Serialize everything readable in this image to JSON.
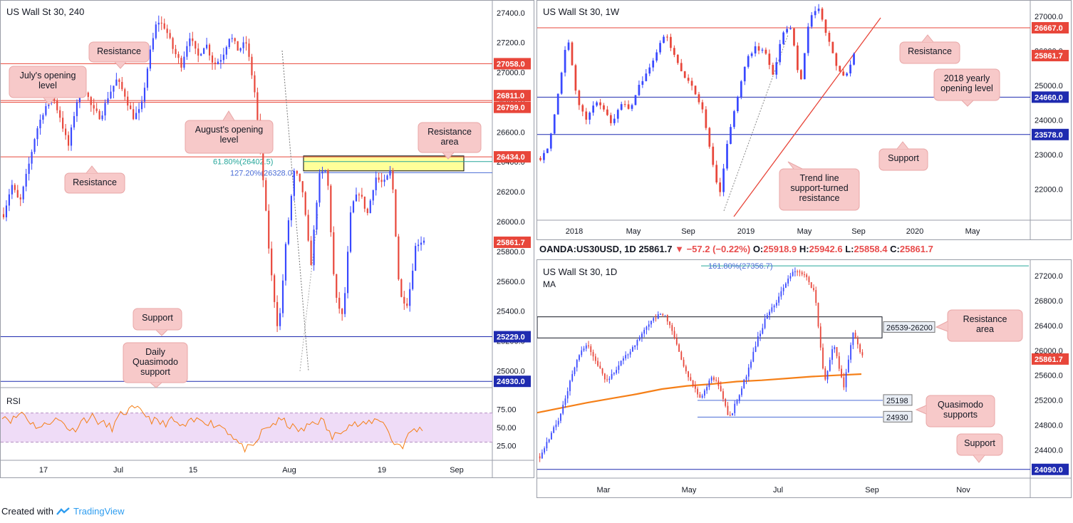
{
  "colors": {
    "up": "#3949ff",
    "down": "#e8463a",
    "red_level": "#e8463a",
    "blue_level": "#1f2bb0",
    "callout_bg": "#f7c9c9",
    "callout_border": "#e8a6a6",
    "ma": "#f57f17",
    "rsi": "#f57f17",
    "rsi_band": "#efdcf7",
    "fib_green": "#26a69a",
    "fib_blue": "#4a6cd6",
    "zone_yellow": "#ffff99"
  },
  "footer": {
    "text": "Created with",
    "brand": "TradingView"
  },
  "info": {
    "symbol": "OANDA:US30USD, 1D",
    "last": "25861.7",
    "arrow": "▼",
    "change": "−57.2 (−0.22%)",
    "o_label": "O:",
    "o": "25918.9",
    "h_label": "H:",
    "h": "25942.6",
    "l_label": "L:",
    "l": "25858.4",
    "c_label": "C:",
    "c": "25861.7"
  },
  "chart_data": [
    {
      "type": "candlestick",
      "title": "US Wall St 30, 240",
      "x_ticks": [
        "17",
        "Jul",
        "15",
        "Aug",
        "19",
        "Sep"
      ],
      "y_ticks": [
        "27400.0",
        "27200.0",
        "27000.0",
        "26800.0",
        "26600.0",
        "26400.0",
        "26200.0",
        "26000.0",
        "25800.0",
        "25600.0",
        "25400.0",
        "25200.0",
        "25000.0"
      ],
      "ylim": [
        24950,
        27480
      ],
      "levels": [
        {
          "value": 27058.0,
          "label": "27058.0",
          "color": "red"
        },
        {
          "value": 26811.0,
          "label": "26811.0",
          "color": "red"
        },
        {
          "value": 26799.0,
          "label": "26799.0",
          "color": "red"
        },
        {
          "value": 26434.0,
          "label": "26434.0",
          "color": "red"
        },
        {
          "value": 25861.7,
          "label": "25861.7",
          "color": "red"
        },
        {
          "value": 25229.0,
          "label": "25229.0",
          "color": "blue"
        },
        {
          "value": 24930.0,
          "label": "24930.0",
          "color": "blue"
        }
      ],
      "fib": [
        {
          "label": "61.80%(26402.5)",
          "value": 26402.5
        },
        {
          "label": "127.20%(26328.0)",
          "value": 26328.0
        }
      ],
      "zone": [
        26340,
        26440
      ],
      "annotations": [
        "Resistance",
        "July's opening level",
        "August's opening level",
        "Resistance area",
        "Resistance",
        "Support",
        "Daily Quasimodo support"
      ],
      "rsi": {
        "label": "RSI",
        "y_ticks": [
          "75.00",
          "50.00",
          "25.00"
        ],
        "band": [
          30,
          70
        ]
      }
    },
    {
      "type": "candlestick",
      "title": "US Wall St 30, 1W",
      "x_ticks": [
        "2018",
        "May",
        "Sep",
        "2019",
        "May",
        "Sep",
        "2020",
        "May"
      ],
      "y_ticks": [
        "27000.0",
        "26000.0",
        "25000.0",
        "24000.0",
        "23000.0",
        "22000.0"
      ],
      "ylim": [
        21100,
        27450
      ],
      "levels": [
        {
          "value": 26667.0,
          "label": "26667.0",
          "color": "red"
        },
        {
          "value": 25861.7,
          "label": "25861.7",
          "color": "red"
        },
        {
          "value": 24660.0,
          "label": "24660.0",
          "color": "blue"
        },
        {
          "value": 23578.0,
          "label": "23578.0",
          "color": "blue"
        }
      ],
      "annotations": [
        "Resistance",
        "2018 yearly opening level",
        "Support",
        "Trend line support-turned resistance"
      ]
    },
    {
      "type": "candlestick",
      "title": "US Wall St 30, 1D",
      "subtitle": "MA",
      "x_ticks": [
        "Mar",
        "May",
        "Jul",
        "Sep",
        "Nov"
      ],
      "y_ticks": [
        "27200.0",
        "26800.0",
        "26400.0",
        "26000.0",
        "25600.0",
        "25200.0",
        "24800.0",
        "24400.0"
      ],
      "ylim": [
        23950,
        27450
      ],
      "levels": [
        {
          "value": 25861.7,
          "label": "25861.7",
          "color": "red"
        },
        {
          "value": 24090.0,
          "label": "24090.0",
          "color": "blue"
        }
      ],
      "fib": [
        {
          "label": "161.80%(27356.7)",
          "value": 27356.7
        }
      ],
      "box_label": "26539-26200",
      "box": [
        26200,
        26539
      ],
      "support_labels": [
        {
          "label": "25198",
          "value": 25198
        },
        {
          "label": "24930",
          "value": 24930
        }
      ],
      "annotations": [
        "Resistance area",
        "Quasimodo supports",
        "Support"
      ]
    }
  ]
}
